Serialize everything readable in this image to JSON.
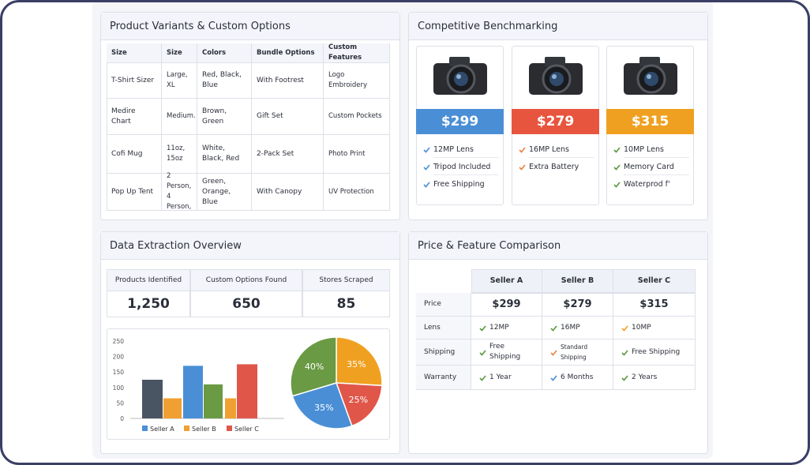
{
  "variants": {
    "title": "Product Variants & Custom Options",
    "headers": [
      "Size",
      "Size",
      "Colors",
      "Bundle Options",
      "Custom Features"
    ],
    "rows": [
      [
        "T-Shirt Sizer",
        "Large, XL",
        "Red, Black, Blue",
        "With Footrest",
        "Logo Embroidery"
      ],
      [
        "Medire Chart",
        "Medium.",
        "Brown, Green",
        "Gift Set",
        "Custom Pockets"
      ],
      [
        "Cofi Mug",
        "11oz, 15oz",
        "White, Black, Red",
        "2-Pack Set",
        "Photo Print"
      ],
      [
        "Pop Up Tent",
        "2 Person, 4 Person,",
        "Green, Orange, Blue",
        "With Canopy",
        "UV Protection"
      ]
    ]
  },
  "benchmark": {
    "title": "Competitive Benchmarking",
    "cards": [
      {
        "price": "$299",
        "color": "#4a8fd6",
        "features": [
          "12MP Lens",
          "Tripod Included",
          "Free Shipping"
        ]
      },
      {
        "price": "$279",
        "color": "#e8553f",
        "features": [
          "16MP Lens",
          "Extra Battery"
        ]
      },
      {
        "price": "$315",
        "color": "#f0a020",
        "features": [
          "10MP Lens",
          "Memory Card",
          "Waterprod f'"
        ]
      }
    ]
  },
  "extraction": {
    "title": "Data Extraction Overview",
    "stats": [
      {
        "label": "Products Identified",
        "value": "1,250"
      },
      {
        "label": "Custom Options Found",
        "value": "650"
      },
      {
        "label": "Stores Scraped",
        "value": "85"
      }
    ]
  },
  "comparison": {
    "title": "Price & Feature Comparison",
    "headers": [
      "Seller A",
      "Seller B",
      "Seller C"
    ],
    "rows": [
      {
        "label": "Price",
        "cells": [
          "$299",
          "$279",
          "$315"
        ]
      },
      {
        "label": "Lens",
        "cells": [
          "12MP",
          "16MP",
          "10MP"
        ]
      },
      {
        "label": "Shipping",
        "cells": [
          "Free Shipping",
          "Standard Shipping",
          "Free Shipping"
        ]
      },
      {
        "label": "Warranty",
        "cells": [
          "1 Year",
          "6 Months",
          "2 Years"
        ]
      }
    ]
  },
  "chart_data": [
    {
      "type": "bar",
      "categories": [
        null,
        null,
        null,
        null,
        null,
        null
      ],
      "values": [
        125,
        65,
        170,
        110,
        65,
        175
      ],
      "colors": [
        "#4a5563",
        "#f0a030",
        "#4a8fd6",
        "#6a9a44",
        "#f0a030",
        "#e0574a"
      ],
      "ylim": [
        0,
        250
      ],
      "yticks": [
        0,
        50,
        100,
        150,
        200,
        250
      ],
      "legend": [
        {
          "name": "Seller A",
          "color": "#4a8fd6"
        },
        {
          "name": "Seller B",
          "color": "#f0a030"
        },
        {
          "name": "Seller C",
          "color": "#e0574a"
        }
      ]
    },
    {
      "type": "pie",
      "values": [
        35,
        25,
        35,
        40
      ],
      "value_labels": [
        "35%",
        "25%",
        "35%",
        "40%"
      ],
      "colors": [
        "#f0a020",
        "#e0574a",
        "#4a8fd6",
        "#6a9a44"
      ]
    }
  ]
}
